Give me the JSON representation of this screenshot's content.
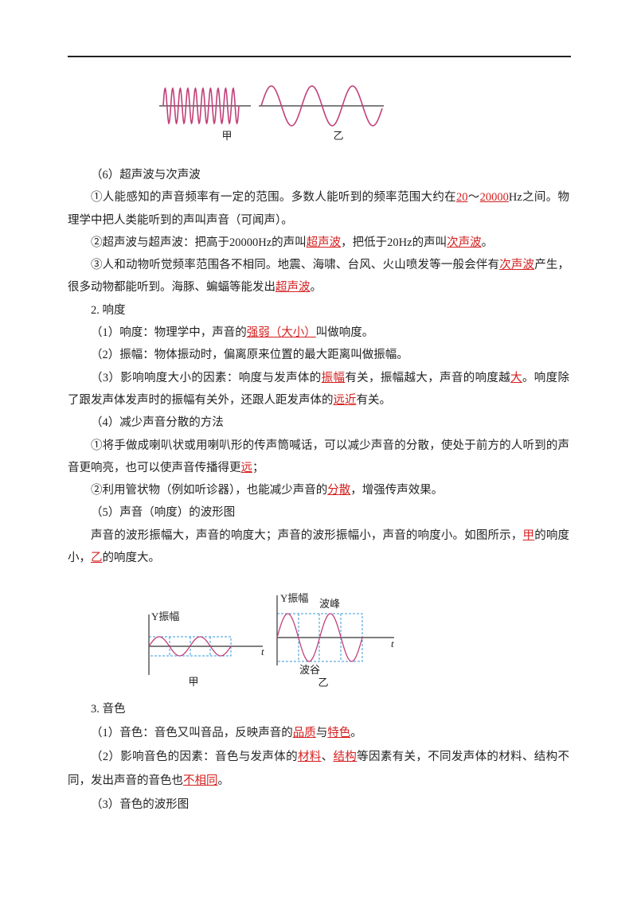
{
  "figure_1": {
    "labels": [
      "甲",
      "乙"
    ]
  },
  "paragraphs_1": [
    [
      "（6）超声波与次声波"
    ],
    [
      "①人能感知的声音频率有一定的范围。多数人能听到的频率范围大约在",
      {
        "answer": "20"
      },
      "～",
      {
        "answer": "20000"
      },
      "Hz之间。物理学中把人类能听到的声叫声音（可闻声）。"
    ],
    [
      "②超声波与超声波：把高于20000Hz的声叫",
      {
        "answer": "超声波"
      },
      "，把低于20Hz的声叫",
      {
        "answer": "次声波"
      },
      "。"
    ],
    [
      "③人和动物听觉频率范围各不相同。地震、海啸、台风、火山喷发等一般会伴有",
      {
        "answer": "次声波"
      },
      "产生，很多动物都能听到。海豚、蝙蝠等能发出",
      {
        "answer": "超声波"
      },
      "。"
    ],
    [
      "2. 响度"
    ],
    [
      "（1）响度：物理学中，声音的",
      {
        "answer": "强弱（大小）"
      },
      "叫做响度。"
    ],
    [
      "（2）振幅：物体振动时，偏离原来位置的最大距离叫做振幅。"
    ],
    [
      "（3）影响响度大小的因素：响度与发声体的",
      {
        "answer": "振幅"
      },
      "有关，振幅越大，声音的响度越",
      {
        "answer": "大"
      },
      "。响度除了跟发声体发声时的振幅有关外，还跟人距发声体的",
      {
        "answer": "远近"
      },
      "有关。"
    ],
    [
      "（4）减少声音分散的方法"
    ],
    [
      "①将手做成喇叭状或用喇叭形的传声筒喊话，可以减少声音的分散，使处于前方的人听到的声音更响亮，也可以使声音传播得更",
      {
        "answer": "远"
      },
      "；"
    ],
    [
      "②利用管状物（例如听诊器），也能减少声音的",
      {
        "answer": "分散"
      },
      "，增强传声效果。"
    ],
    [
      "（5）声音（响度）的波形图"
    ],
    [
      "声音的波形振幅大，声音的响度大；声音的波形振幅小，声音的响度小。如图所示，",
      {
        "answer": "甲"
      },
      "的响度小，",
      {
        "answer": "乙"
      },
      "的响度大。"
    ]
  ],
  "figure_2": {
    "left": {
      "y_label": "Y振幅",
      "t_label": "t",
      "caption": "甲"
    },
    "right": {
      "y_label": "Y振幅",
      "crest": "波峰",
      "trough": "波谷",
      "t_label": "t",
      "caption": "乙"
    }
  },
  "paragraphs_2": [
    [
      "3. 音色"
    ],
    [
      "（1）音色：音色又叫音品，反映声音的",
      {
        "answer": "品质"
      },
      "与",
      {
        "answer": "特色"
      },
      "。"
    ],
    [
      "（2）影响音色的因素：音色与发声体的",
      {
        "answer": "材料"
      },
      "、",
      {
        "answer": "结构"
      },
      "等因素有关，不同发声体的材料、结构不同，发出声音的音色也",
      {
        "answer": "不相同"
      },
      "。"
    ],
    [
      "（3）音色的波形图"
    ]
  ]
}
